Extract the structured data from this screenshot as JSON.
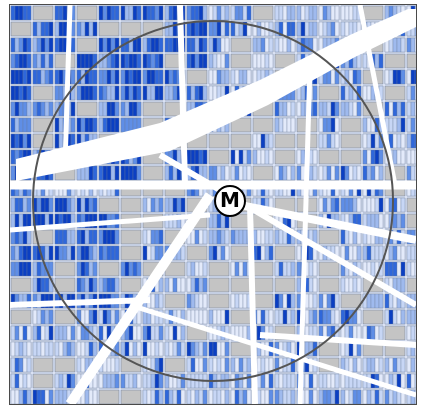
{
  "map": {
    "marker": {
      "symbol": "M",
      "icon": "metro-station-icon"
    },
    "buffer_ring": {
      "shape": "circle",
      "stroke_color": "#555555"
    },
    "colors": {
      "street": "#ffffff",
      "parcel_outline": "#6b7d99",
      "non_residential_parcel": "#c4c4c4",
      "scale": [
        "#e3eafa",
        "#c7d6f5",
        "#9fbaee",
        "#5f8ee6",
        "#2f67da",
        "#0b3fc2"
      ]
    }
  }
}
